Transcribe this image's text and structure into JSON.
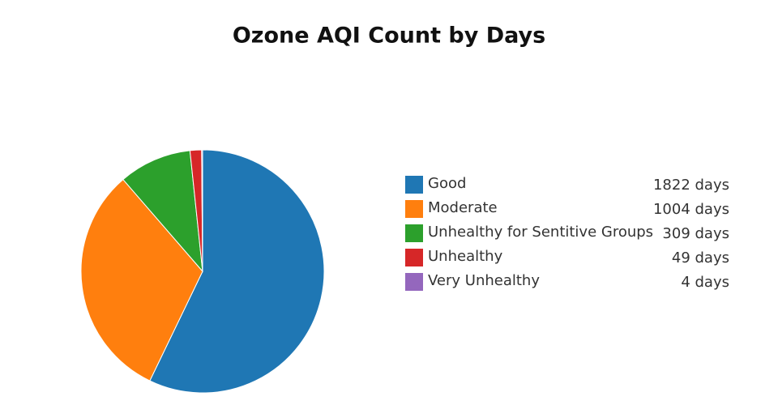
{
  "chart_data": {
    "type": "pie",
    "title": "Ozone AQI Count by Days",
    "categories": [
      "Good",
      "Moderate",
      "Unhealthy for Sentitive Groups",
      "Unhealthy",
      "Very Unhealthy"
    ],
    "values": [
      1822,
      1004,
      309,
      49,
      4
    ],
    "value_labels": [
      "1822 days",
      "1004 days",
      "309 days",
      "49 days",
      "4 days"
    ],
    "colors": [
      "#1f77b4",
      "#ff7f0e",
      "#2ca02c",
      "#d62728",
      "#9467bd"
    ]
  }
}
